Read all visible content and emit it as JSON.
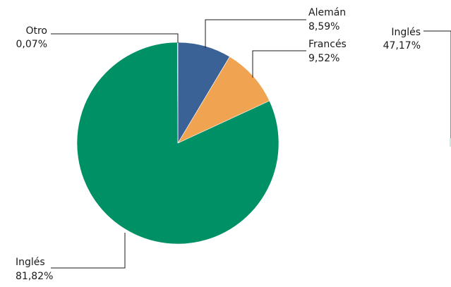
{
  "chart_data": [
    {
      "type": "pie",
      "slices": [
        {
          "label": "Alemán",
          "value": 8.59,
          "value_label": "8,59%",
          "color": "#3a6296"
        },
        {
          "label": "Francés",
          "value": 9.52,
          "value_label": "9,52%",
          "color": "#f0a351"
        },
        {
          "label": "Inglés",
          "value": 81.82,
          "value_label": "81,82%",
          "color": "#009066"
        },
        {
          "label": "Otro",
          "value": 0.07,
          "value_label": "0,07%",
          "color": "#5a5a5a"
        }
      ],
      "start": "top",
      "direction": "clockwise",
      "labels": "outside with leader lines",
      "legend": "none"
    },
    {
      "type": "pie",
      "slices": [
        {
          "label": "Inglés",
          "value": 47.17,
          "value_label": "47,17%",
          "color": "#009066"
        }
      ],
      "partially_visible": true,
      "labels": "outside with leader lines",
      "legend": "none"
    }
  ]
}
